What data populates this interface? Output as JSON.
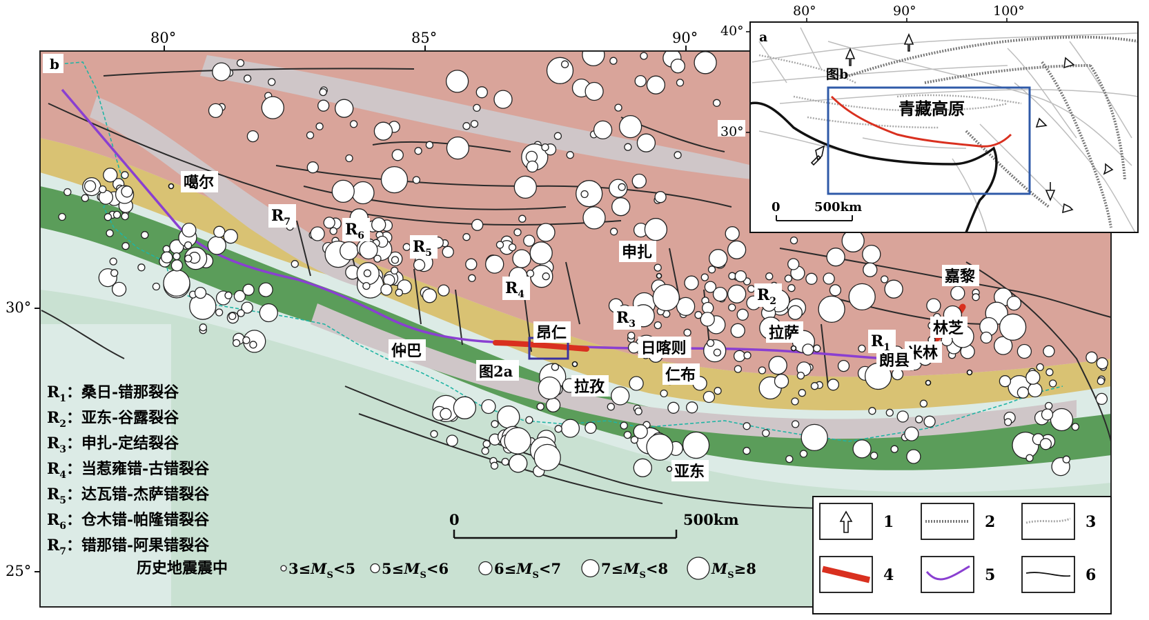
{
  "colors": {
    "sea": "#dcebe6",
    "lowland": "#c9e1d2",
    "foothill": "#5b9d5a",
    "midland": "#d9c273",
    "plateau": "#d9a49a",
    "highland": "#cfc6c8",
    "suture_line": "#8a3fd1",
    "rift_highlight": "#d9301f",
    "inset_frame": "#2f5aa8",
    "study_box": "#3a32a0"
  },
  "main_map": {
    "panel_label": "b",
    "lon_ticks": [
      {
        "value": 80,
        "label": "80°"
      },
      {
        "value": 85,
        "label": "85°"
      },
      {
        "value": 90,
        "label": "90°"
      }
    ],
    "lat_ticks": [
      {
        "value": 30,
        "label": "30°"
      },
      {
        "value": 25,
        "label": "25°"
      }
    ],
    "places": [
      {
        "id": "gaer",
        "label": "噶尔"
      },
      {
        "id": "zhongba",
        "label": "仲巴"
      },
      {
        "id": "angren",
        "label": "昂仁"
      },
      {
        "id": "lazi",
        "label": "拉孜"
      },
      {
        "id": "rikaze",
        "label": "日喀则"
      },
      {
        "id": "renbu",
        "label": "仁布"
      },
      {
        "id": "lasa",
        "label": "拉萨"
      },
      {
        "id": "shenzha",
        "label": "申扎"
      },
      {
        "id": "jiali",
        "label": "嘉黎"
      },
      {
        "id": "linzhi",
        "label": "林芝"
      },
      {
        "id": "milin",
        "label": "米林"
      },
      {
        "id": "langxian",
        "label": "朗县"
      },
      {
        "id": "yadong",
        "label": "亚东"
      }
    ],
    "figure_ref": "图2a",
    "rifts": [
      {
        "id": "R1",
        "letter": "R",
        "sub": "1",
        "name": "桑日-错那裂谷"
      },
      {
        "id": "R2",
        "letter": "R",
        "sub": "2",
        "name": "亚东-谷露裂谷"
      },
      {
        "id": "R3",
        "letter": "R",
        "sub": "3",
        "name": "申扎-定结裂谷"
      },
      {
        "id": "R4",
        "letter": "R",
        "sub": "4",
        "name": "当惹雍错-古错裂谷"
      },
      {
        "id": "R5",
        "letter": "R",
        "sub": "5",
        "name": "达瓦错-杰萨错裂谷"
      },
      {
        "id": "R6",
        "letter": "R",
        "sub": "6",
        "name": "仓木错-帕隆错裂谷"
      },
      {
        "id": "R7",
        "letter": "R",
        "sub": "7",
        "name": "错那错-阿果错裂谷"
      }
    ],
    "rift_legend_sep": "：",
    "scale_bar": {
      "start_label": "0",
      "end_label": "500km"
    },
    "quake_legend": {
      "title": "历史地震震中",
      "classes": [
        {
          "lo": "3",
          "op1": "≤",
          "sym": "M",
          "sub": "S",
          "op2": "<",
          "hi": "5"
        },
        {
          "lo": "5",
          "op1": "≤",
          "sym": "M",
          "sub": "S",
          "op2": "<",
          "hi": "6"
        },
        {
          "lo": "6",
          "op1": "≤",
          "sym": "M",
          "sub": "S",
          "op2": "<",
          "hi": "7"
        },
        {
          "lo": "7",
          "op1": "≤",
          "sym": "M",
          "sub": "S",
          "op2": "<",
          "hi": "8"
        },
        {
          "lo": "",
          "op1": "",
          "sym": "M",
          "sub": "S",
          "op2": "≥",
          "hi": "8"
        }
      ]
    }
  },
  "inset": {
    "panel_label": "a",
    "lon_ticks": [
      {
        "value": 80,
        "label": "80°"
      },
      {
        "value": 90,
        "label": "90°"
      },
      {
        "value": 100,
        "label": "100°"
      }
    ],
    "lat_ticks": [
      {
        "value": 40,
        "label": "40°"
      },
      {
        "value": 30,
        "label": "30°"
      }
    ],
    "region_label": "青藏高原",
    "box_label": "图b",
    "scale_bar": {
      "start_label": "0",
      "end_label": "500km"
    }
  },
  "symbol_legend": {
    "items": [
      {
        "number": "1",
        "symbol": "arrow"
      },
      {
        "number": "2",
        "symbol": "dotted-dark-line"
      },
      {
        "number": "3",
        "symbol": "dotted-light-line"
      },
      {
        "number": "4",
        "symbol": "red-thick-line"
      },
      {
        "number": "5",
        "symbol": "purple-line"
      },
      {
        "number": "6",
        "symbol": "black-line"
      }
    ]
  }
}
